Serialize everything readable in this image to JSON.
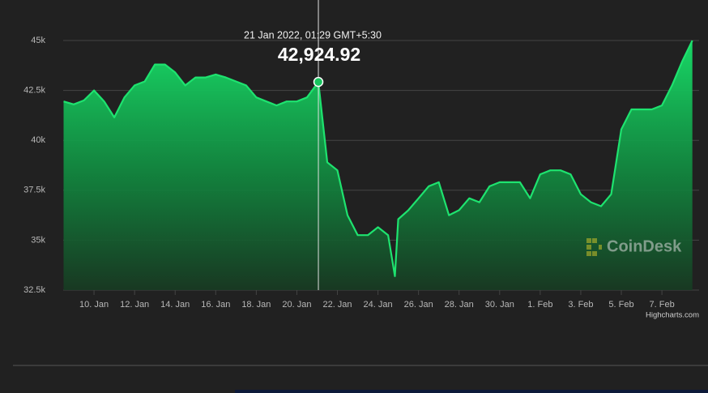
{
  "chart_data": {
    "type": "area",
    "tooltip": {
      "date": "21 Jan 2022, 01:29 GMT+5:30",
      "value": "42,924.92"
    },
    "watermark": "CoinDesk",
    "credits": "Highcharts.com",
    "x": [
      "2022-01-08 12:00",
      "2022-01-09 00:00",
      "2022-01-09 12:00",
      "2022-01-10 00:00",
      "2022-01-10 12:00",
      "2022-01-11 00:00",
      "2022-01-11 12:00",
      "2022-01-12 00:00",
      "2022-01-12 12:00",
      "2022-01-13 00:00",
      "2022-01-13 12:00",
      "2022-01-14 00:00",
      "2022-01-14 12:00",
      "2022-01-15 00:00",
      "2022-01-15 12:00",
      "2022-01-16 00:00",
      "2022-01-16 12:00",
      "2022-01-17 00:00",
      "2022-01-17 12:00",
      "2022-01-18 00:00",
      "2022-01-18 12:00",
      "2022-01-19 00:00",
      "2022-01-19 12:00",
      "2022-01-20 00:00",
      "2022-01-20 12:00",
      "2022-01-21 01:29",
      "2022-01-21 12:00",
      "2022-01-22 00:00",
      "2022-01-22 12:00",
      "2022-01-23 00:00",
      "2022-01-23 12:00",
      "2022-01-24 00:00",
      "2022-01-24 12:00",
      "2022-01-24 20:00",
      "2022-01-25 00:00",
      "2022-01-25 12:00",
      "2022-01-26 00:00",
      "2022-01-26 12:00",
      "2022-01-27 00:00",
      "2022-01-27 12:00",
      "2022-01-28 00:00",
      "2022-01-28 12:00",
      "2022-01-29 00:00",
      "2022-01-29 12:00",
      "2022-01-30 00:00",
      "2022-01-30 12:00",
      "2022-01-31 00:00",
      "2022-01-31 12:00",
      "2022-02-01 00:00",
      "2022-02-01 12:00",
      "2022-02-02 00:00",
      "2022-02-02 12:00",
      "2022-02-03 00:00",
      "2022-02-03 12:00",
      "2022-02-04 00:00",
      "2022-02-04 12:00",
      "2022-02-05 00:00",
      "2022-02-05 12:00",
      "2022-02-06 00:00",
      "2022-02-06 12:00",
      "2022-02-07 00:00",
      "2022-02-07 12:00",
      "2022-02-08 00:00",
      "2022-02-08 12:00"
    ],
    "series": [
      {
        "color": "#1ee36f",
        "values": [
          41950,
          41800,
          42000,
          42500,
          41950,
          41150,
          42150,
          42750,
          42950,
          43800,
          43800,
          43400,
          42750,
          43150,
          43150,
          43300,
          43150,
          42950,
          42750,
          42150,
          41950,
          41750,
          41950,
          41950,
          42150,
          42924.92,
          38900,
          38500,
          36250,
          35250,
          35250,
          35650,
          35250,
          33200,
          36050,
          36500,
          37100,
          37700,
          37900,
          36250,
          36500,
          37100,
          36900,
          37700,
          37900,
          37900,
          37900,
          37100,
          38300,
          38500,
          38500,
          38300,
          37300,
          36900,
          36700,
          37300,
          40550,
          41550,
          41550,
          41550,
          41750,
          42750,
          43950,
          45000
        ]
      }
    ],
    "xlim": [
      "2022-01-08 11:30",
      "2022-02-08 20:00"
    ],
    "xticks": [
      {
        "value": "2022-01-10 00:00",
        "label": "10. Jan"
      },
      {
        "value": "2022-01-12 00:00",
        "label": "12. Jan"
      },
      {
        "value": "2022-01-14 00:00",
        "label": "14. Jan"
      },
      {
        "value": "2022-01-16 00:00",
        "label": "16. Jan"
      },
      {
        "value": "2022-01-18 00:00",
        "label": "18. Jan"
      },
      {
        "value": "2022-01-20 00:00",
        "label": "20. Jan"
      },
      {
        "value": "2022-01-22 00:00",
        "label": "22. Jan"
      },
      {
        "value": "2022-01-24 00:00",
        "label": "24. Jan"
      },
      {
        "value": "2022-01-26 00:00",
        "label": "26. Jan"
      },
      {
        "value": "2022-01-28 00:00",
        "label": "28. Jan"
      },
      {
        "value": "2022-01-30 00:00",
        "label": "30. Jan"
      },
      {
        "value": "2022-02-01 00:00",
        "label": "1. Feb"
      },
      {
        "value": "2022-02-03 00:00",
        "label": "3. Feb"
      },
      {
        "value": "2022-02-05 00:00",
        "label": "5. Feb"
      },
      {
        "value": "2022-02-07 00:00",
        "label": "7. Feb"
      }
    ],
    "ylim": [
      32500,
      45000
    ],
    "yticks": [
      {
        "value": 32500,
        "label": "32.5k"
      },
      {
        "value": 35000,
        "label": "35k"
      },
      {
        "value": 37500,
        "label": "37.5k"
      },
      {
        "value": 40000,
        "label": "40k"
      },
      {
        "value": 42500,
        "label": "42.5k"
      },
      {
        "value": 45000,
        "label": "45k"
      }
    ],
    "grid": true
  }
}
